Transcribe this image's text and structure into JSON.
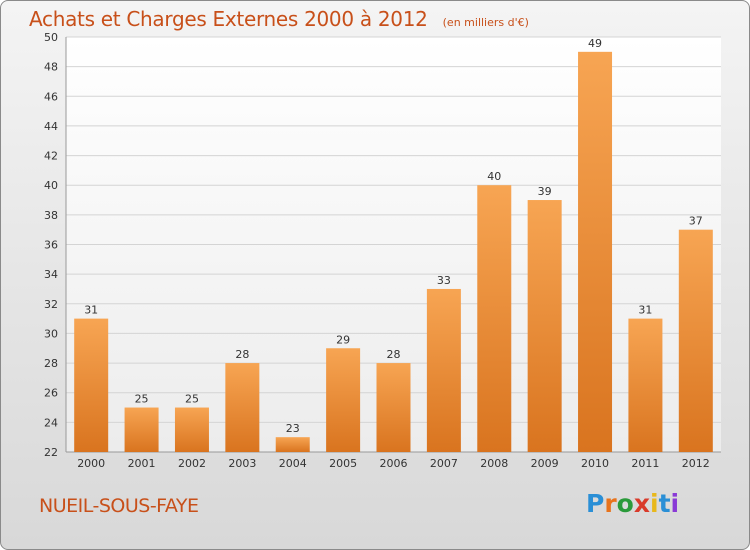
{
  "page": {
    "title": "Achats et Charges Externes 2000 à 2012",
    "unit": "(en milliers d'€)",
    "commune": "NUEIL-SOUS-FAYE"
  },
  "logo": {
    "letters": [
      "P",
      "r",
      "o",
      "x",
      "i",
      "t",
      "i"
    ],
    "colors": [
      "#2a8fd6",
      "#e8731c",
      "#2a9a3a",
      "#d93a2a",
      "#e8b81c",
      "#2a8fd6",
      "#8a3ad6"
    ]
  },
  "chart_data": {
    "type": "bar",
    "title": "Achats et Charges Externes 2000 à 2012",
    "subtitle": "(en milliers d'€)",
    "categories": [
      "2000",
      "2001",
      "2002",
      "2003",
      "2004",
      "2005",
      "2006",
      "2007",
      "2008",
      "2009",
      "2010",
      "2011",
      "2012"
    ],
    "values": [
      31,
      25,
      25,
      28,
      23,
      29,
      28,
      33,
      40,
      39,
      49,
      31,
      37
    ],
    "ylim": [
      22,
      50
    ],
    "yticks": [
      22,
      24,
      26,
      28,
      30,
      32,
      34,
      36,
      38,
      40,
      42,
      44,
      46,
      48,
      50
    ],
    "xlabel": "",
    "ylabel": "",
    "grid": true,
    "bar_color": "#f0903c"
  }
}
